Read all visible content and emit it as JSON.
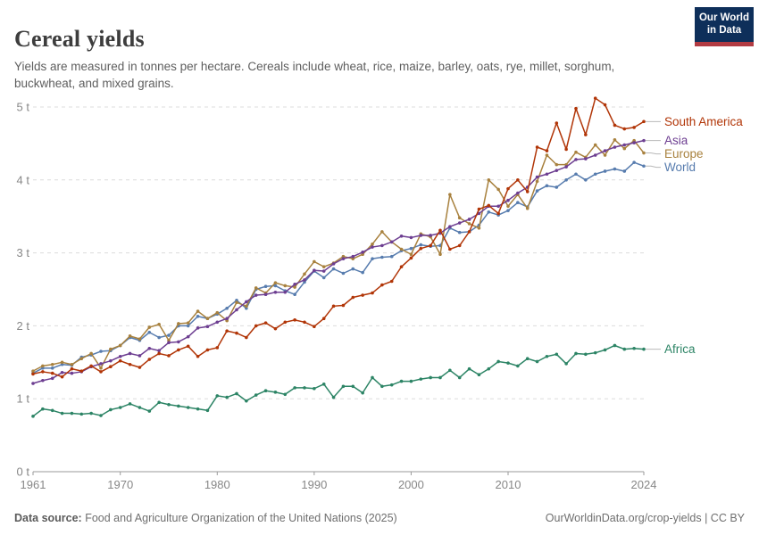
{
  "header": {
    "title": "Cereal yields",
    "subtitle": "Yields are measured in tonnes per hectare. Cereals include wheat, rice, maize, barley, oats, rye, millet, sorghum, buckwheat, and mixed grains.",
    "logo": {
      "line1": "Our World",
      "line2": "in Data"
    }
  },
  "footer": {
    "source_label": "Data source:",
    "source_text": " Food and Agriculture Organization of the United Nations (2025)",
    "right_text": "OurWorldinData.org/crop-yields | CC BY"
  },
  "chart_data": {
    "type": "line",
    "title": "Cereal yields",
    "unit": "tonnes per hectare",
    "ylim": [
      0,
      5
    ],
    "ytick_labels": [
      "0 t",
      "1 t",
      "2 t",
      "3 t",
      "4 t",
      "5 t"
    ],
    "xticks": [
      1961,
      1970,
      1980,
      1990,
      2000,
      2010,
      2024
    ],
    "grid": "horizontal dashed",
    "legend_position": "right edge, colored labels with connectors",
    "marker": "dot",
    "x": [
      1961,
      1962,
      1963,
      1964,
      1965,
      1966,
      1967,
      1968,
      1969,
      1970,
      1971,
      1972,
      1973,
      1974,
      1975,
      1976,
      1977,
      1978,
      1979,
      1980,
      1981,
      1982,
      1983,
      1984,
      1985,
      1986,
      1987,
      1988,
      1989,
      1990,
      1991,
      1992,
      1993,
      1994,
      1995,
      1996,
      1997,
      1998,
      1999,
      2000,
      2001,
      2002,
      2003,
      2004,
      2005,
      2006,
      2007,
      2008,
      2009,
      2010,
      2011,
      2012,
      2013,
      2014,
      2015,
      2016,
      2017,
      2018,
      2019,
      2020,
      2021,
      2022,
      2023,
      2024
    ],
    "series": [
      {
        "name": "South America",
        "color": "#B13507",
        "values": [
          1.34,
          1.37,
          1.35,
          1.3,
          1.41,
          1.38,
          1.45,
          1.37,
          1.44,
          1.52,
          1.47,
          1.43,
          1.54,
          1.62,
          1.59,
          1.67,
          1.72,
          1.58,
          1.67,
          1.7,
          1.93,
          1.9,
          1.84,
          2.0,
          2.04,
          1.96,
          2.05,
          2.08,
          2.05,
          1.99,
          2.1,
          2.27,
          2.28,
          2.39,
          2.42,
          2.45,
          2.56,
          2.61,
          2.81,
          2.93,
          3.06,
          3.1,
          3.31,
          3.05,
          3.1,
          3.29,
          3.6,
          3.65,
          3.54,
          3.88,
          4.0,
          3.84,
          4.45,
          4.4,
          4.78,
          4.42,
          4.98,
          4.62,
          5.12,
          5.03,
          4.75,
          4.7,
          4.72,
          4.8
        ]
      },
      {
        "name": "Asia",
        "color": "#6D3E91",
        "values": [
          1.21,
          1.25,
          1.28,
          1.36,
          1.35,
          1.37,
          1.44,
          1.48,
          1.52,
          1.58,
          1.62,
          1.59,
          1.69,
          1.66,
          1.77,
          1.78,
          1.85,
          1.97,
          1.99,
          2.05,
          2.1,
          2.22,
          2.33,
          2.42,
          2.43,
          2.46,
          2.46,
          2.57,
          2.63,
          2.76,
          2.75,
          2.85,
          2.92,
          2.95,
          3.01,
          3.08,
          3.1,
          3.15,
          3.23,
          3.21,
          3.24,
          3.24,
          3.27,
          3.36,
          3.41,
          3.46,
          3.54,
          3.64,
          3.64,
          3.72,
          3.82,
          3.9,
          4.04,
          4.08,
          4.13,
          4.18,
          4.28,
          4.29,
          4.34,
          4.4,
          4.45,
          4.48,
          4.51,
          4.54
        ]
      },
      {
        "name": "Europe",
        "color": "#A8813E",
        "values": [
          1.38,
          1.45,
          1.47,
          1.5,
          1.47,
          1.55,
          1.62,
          1.42,
          1.68,
          1.73,
          1.86,
          1.82,
          1.98,
          2.02,
          1.8,
          2.03,
          2.04,
          2.2,
          2.1,
          2.18,
          2.07,
          2.32,
          2.27,
          2.52,
          2.45,
          2.59,
          2.55,
          2.53,
          2.71,
          2.88,
          2.81,
          2.86,
          2.95,
          2.92,
          2.98,
          3.12,
          3.29,
          3.15,
          3.05,
          2.98,
          3.26,
          3.22,
          2.98,
          3.8,
          3.48,
          3.4,
          3.34,
          4.0,
          3.87,
          3.64,
          3.8,
          3.61,
          3.98,
          4.34,
          4.21,
          4.21,
          4.38,
          4.31,
          4.48,
          4.34,
          4.55,
          4.43,
          4.54,
          4.37
        ]
      },
      {
        "name": "World",
        "color": "#577CAE",
        "values": [
          1.35,
          1.42,
          1.42,
          1.47,
          1.46,
          1.57,
          1.6,
          1.65,
          1.66,
          1.73,
          1.84,
          1.8,
          1.91,
          1.84,
          1.87,
          2.0,
          2.0,
          2.13,
          2.1,
          2.16,
          2.24,
          2.35,
          2.24,
          2.5,
          2.54,
          2.55,
          2.48,
          2.43,
          2.6,
          2.75,
          2.66,
          2.78,
          2.72,
          2.78,
          2.73,
          2.92,
          2.94,
          2.95,
          3.03,
          3.06,
          3.11,
          3.09,
          3.1,
          3.34,
          3.28,
          3.29,
          3.38,
          3.56,
          3.52,
          3.58,
          3.69,
          3.63,
          3.85,
          3.92,
          3.9,
          4.0,
          4.08,
          4.0,
          4.08,
          4.12,
          4.15,
          4.12,
          4.24,
          4.19
        ]
      },
      {
        "name": "Africa",
        "color": "#2C8465",
        "values": [
          0.76,
          0.86,
          0.84,
          0.8,
          0.8,
          0.79,
          0.8,
          0.77,
          0.85,
          0.88,
          0.93,
          0.88,
          0.83,
          0.95,
          0.92,
          0.9,
          0.88,
          0.86,
          0.84,
          1.04,
          1.02,
          1.07,
          0.97,
          1.05,
          1.11,
          1.09,
          1.06,
          1.15,
          1.15,
          1.14,
          1.2,
          1.02,
          1.17,
          1.17,
          1.08,
          1.29,
          1.17,
          1.19,
          1.24,
          1.24,
          1.27,
          1.29,
          1.29,
          1.39,
          1.29,
          1.41,
          1.33,
          1.41,
          1.51,
          1.49,
          1.45,
          1.55,
          1.51,
          1.58,
          1.61,
          1.48,
          1.62,
          1.61,
          1.63,
          1.67,
          1.73,
          1.68,
          1.69,
          1.68
        ]
      }
    ]
  }
}
